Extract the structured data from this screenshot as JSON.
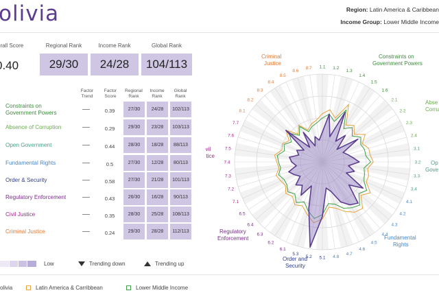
{
  "header": {
    "country": "olivia",
    "region_label": "Region:",
    "region_value": "Latin America & Caribbean",
    "income_label": "Income Group:",
    "income_value": "Lower Middle Income"
  },
  "scores": {
    "overall_label": "erall Score",
    "overall_value": "0.40",
    "regional_label": "Regional Rank",
    "regional_value": "29/30",
    "income_label": "Income Rank",
    "income_value": "24/28",
    "global_label": "Global Rank",
    "global_value": "104/113"
  },
  "table": {
    "headers": [
      "Factor Trend",
      "Factor Score",
      "Regional Rank",
      "Income Rank",
      "Global Rank"
    ],
    "rows": [
      {
        "label": "Constraints on Government Powers",
        "color": "#3d8a3d",
        "score": "0.39",
        "regional": "27/30",
        "income": "24/28",
        "global": "102/113"
      },
      {
        "label": "Absence of Corruption",
        "color": "#6aa84f",
        "score": "0.29",
        "regional": "29/30",
        "income": "23/28",
        "global": "103/113"
      },
      {
        "label": "Open Government",
        "color": "#45a08a",
        "score": "0.44",
        "regional": "28/30",
        "income": "18/28",
        "global": "88/113"
      },
      {
        "label": "Fundamental Rights",
        "color": "#4a86c5",
        "score": "0.5",
        "regional": "27/30",
        "income": "12/28",
        "global": "80/113"
      },
      {
        "label": "Order & Security",
        "color": "#2f3e8c",
        "score": "0.58",
        "regional": "27/30",
        "income": "21/28",
        "global": "101/113"
      },
      {
        "label": "Regulatory Enforcement",
        "color": "#7b2d8b",
        "score": "0.43",
        "regional": "26/30",
        "income": "16/28",
        "global": "90/113"
      },
      {
        "label": "Civil Justice",
        "color": "#a0288a",
        "score": "0.35",
        "regional": "28/30",
        "income": "25/28",
        "global": "108/113"
      },
      {
        "label": "Criminal Justice",
        "color": "#e07b39",
        "score": "0.24",
        "regional": "29/30",
        "income": "28/28",
        "global": "112/113"
      }
    ]
  },
  "legend": {
    "low_label": "Low",
    "trending_down": "Trending down",
    "trending_up": "Trending up",
    "series": [
      {
        "label": "olivia",
        "color": "#5b3c8f"
      },
      {
        "label": "Latin America & Carribbean",
        "color": "#e8a33a"
      },
      {
        "label": "Lower Middle Income",
        "color": "#3fa046"
      }
    ]
  },
  "radar": {
    "factors": [
      {
        "label": "Criminal Justice",
        "color": "#e07b39"
      },
      {
        "label": "Constraints on Government Powers",
        "color": "#3d8a3d"
      },
      {
        "label": "Abse Corru",
        "color": "#6aa84f"
      },
      {
        "label": "Op Gove",
        "color": "#45a08a"
      },
      {
        "label": "Fundamental Rights",
        "color": "#4a86c5"
      },
      {
        "label": "Order and Security",
        "color": "#2f3e8c"
      },
      {
        "label": "Regulatory Enforcement",
        "color": "#7b2d8b"
      },
      {
        "label": "Civil Justice",
        "color": "#a0288a"
      }
    ],
    "spoke_labels": [
      "1.1",
      "1.2",
      "1.3",
      "1.4",
      "1.5",
      "1.6",
      "2.1",
      "2.2",
      "2.3",
      "2.4",
      "3.1",
      "3.2",
      "3.3",
      "3.4",
      "4.1",
      "4.2",
      "4.3",
      "4.4",
      "4.5",
      "4.6",
      "4.7",
      "4.8",
      "5.1",
      "5.2",
      "5.3",
      "6.1",
      "6.2",
      "6.3",
      "6.4",
      "6.5",
      "7.1",
      "7.2",
      "7.3",
      "7.4",
      "7.5",
      "7.6",
      "7.7",
      "8.1",
      "8.2",
      "8.3",
      "8.4",
      "8.5",
      "8.6",
      "8.7"
    ]
  },
  "chart_data": {
    "type": "radar",
    "categories": [
      "1.1",
      "1.2",
      "1.3",
      "1.4",
      "1.5",
      "1.6",
      "2.1",
      "2.2",
      "2.3",
      "2.4",
      "3.1",
      "3.2",
      "3.3",
      "3.4",
      "4.1",
      "4.2",
      "4.3",
      "4.4",
      "4.5",
      "4.6",
      "4.7",
      "4.8",
      "5.1",
      "5.2",
      "5.3",
      "6.1",
      "6.2",
      "6.3",
      "6.4",
      "6.5",
      "7.1",
      "7.2",
      "7.3",
      "7.4",
      "7.5",
      "7.6",
      "7.7",
      "8.1",
      "8.2",
      "8.3",
      "8.4",
      "8.5",
      "8.6",
      "8.7"
    ],
    "range": [
      0,
      1
    ],
    "series": [
      {
        "name": "olivia",
        "values": [
          0.34,
          0.55,
          0.3,
          0.62,
          0.28,
          0.4,
          0.22,
          0.48,
          0.26,
          0.3,
          0.35,
          0.42,
          0.3,
          0.38,
          0.3,
          0.55,
          0.4,
          0.62,
          0.58,
          0.5,
          0.35,
          0.3,
          0.62,
          0.98,
          0.55,
          0.3,
          0.45,
          0.35,
          0.4,
          0.3,
          0.35,
          0.4,
          0.3,
          0.35,
          0.38,
          0.28,
          0.32,
          0.25,
          0.55,
          0.22,
          0.4,
          0.2,
          0.3,
          0.25
        ]
      },
      {
        "name": "Latin America & Carribbean",
        "values": [
          0.55,
          0.6,
          0.52,
          0.72,
          0.5,
          0.55,
          0.48,
          0.58,
          0.5,
          0.55,
          0.55,
          0.58,
          0.52,
          0.55,
          0.55,
          0.65,
          0.58,
          0.7,
          0.68,
          0.62,
          0.55,
          0.52,
          0.65,
          0.7,
          0.62,
          0.55,
          0.58,
          0.52,
          0.55,
          0.5,
          0.52,
          0.55,
          0.5,
          0.52,
          0.55,
          0.48,
          0.5,
          0.45,
          0.55,
          0.42,
          0.5,
          0.4,
          0.45,
          0.48
        ]
      },
      {
        "name": "Lower Middle Income",
        "values": [
          0.5,
          0.55,
          0.48,
          0.65,
          0.45,
          0.52,
          0.45,
          0.52,
          0.48,
          0.5,
          0.5,
          0.55,
          0.48,
          0.5,
          0.52,
          0.6,
          0.55,
          0.65,
          0.62,
          0.58,
          0.5,
          0.48,
          0.6,
          0.65,
          0.58,
          0.5,
          0.55,
          0.48,
          0.52,
          0.48,
          0.48,
          0.52,
          0.48,
          0.5,
          0.52,
          0.45,
          0.48,
          0.42,
          0.5,
          0.4,
          0.48,
          0.38,
          0.42,
          0.45
        ]
      }
    ]
  }
}
